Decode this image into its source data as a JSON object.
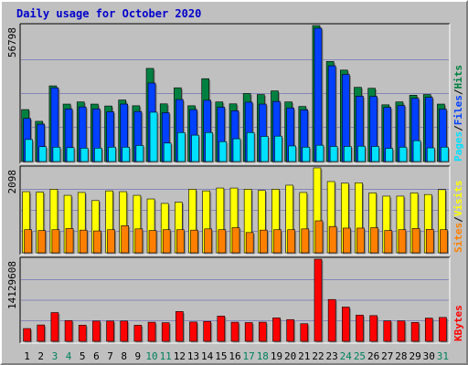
{
  "title": "Daily usage for October 2020",
  "colors": {
    "background": "#c0c0c0",
    "hits": "#008040",
    "files": "#0040ff",
    "pages": "#00e0ff",
    "visits": "#ffff00",
    "sites": "#ff8000",
    "kbytes": "#ff0000",
    "weekend_label": "#00805c",
    "weekday_label": "#000000",
    "gridline": "#0000aa"
  },
  "chart_data": [
    {
      "type": "bar",
      "name": "hits-files-pages",
      "ymax_label": "56798",
      "ymax": 56798,
      "legend": [
        {
          "text": "Pages",
          "color": "#00e0ff"
        },
        {
          "text": "/",
          "color": "#000000"
        },
        {
          "text": "Files",
          "color": "#0040ff"
        },
        {
          "text": "/",
          "color": "#000000"
        },
        {
          "text": "Hits",
          "color": "#008040"
        }
      ],
      "series": [
        {
          "name": "Hits",
          "color": "#008040",
          "values": [
            21700,
            16800,
            31600,
            24000,
            24900,
            24000,
            23200,
            25700,
            23300,
            38900,
            24100,
            30800,
            23300,
            34600,
            24900,
            24100,
            28400,
            28000,
            29500,
            24900,
            23000,
            56798,
            41800,
            38200,
            31000,
            30600,
            23700,
            24900,
            27700,
            28000,
            24000
          ]
        },
        {
          "name": "Files",
          "color": "#0040ff",
          "values": [
            18000,
            15600,
            30800,
            22000,
            22800,
            22000,
            20800,
            24000,
            20900,
            32800,
            20400,
            25900,
            21700,
            25600,
            22700,
            21200,
            24800,
            24000,
            25100,
            22400,
            21600,
            55700,
            40000,
            36400,
            27300,
            27200,
            22600,
            23400,
            26400,
            26800,
            21900
          ]
        },
        {
          "name": "Pages",
          "color": "#00e0ff",
          "values": [
            9200,
            6200,
            6000,
            5800,
            5600,
            5600,
            6000,
            6000,
            6700,
            20600,
            7700,
            12100,
            11000,
            12100,
            8300,
            9500,
            12100,
            10500,
            10600,
            6500,
            6000,
            6800,
            6300,
            6300,
            6400,
            6300,
            5500,
            6000,
            8700,
            5700,
            6000
          ]
        }
      ]
    },
    {
      "type": "bar",
      "name": "visits-sites",
      "ymax_label": "2098",
      "ymax": 2098,
      "legend": [
        {
          "text": "Sites",
          "color": "#ff8000"
        },
        {
          "text": "/",
          "color": "#000000"
        },
        {
          "text": "Visits",
          "color": "#ffff00"
        }
      ],
      "series": [
        {
          "name": "Visits",
          "color": "#ffff00",
          "values": [
            1510,
            1500,
            1570,
            1420,
            1490,
            1290,
            1530,
            1510,
            1420,
            1330,
            1220,
            1250,
            1570,
            1530,
            1600,
            1600,
            1570,
            1540,
            1570,
            1670,
            1490,
            2098,
            1760,
            1720,
            1730,
            1480,
            1400,
            1400,
            1480,
            1440,
            1560
          ]
        },
        {
          "name": "Sites",
          "color": "#ff8000",
          "values": [
            570,
            550,
            570,
            600,
            560,
            540,
            570,
            670,
            590,
            550,
            570,
            570,
            560,
            590,
            570,
            620,
            500,
            560,
            570,
            570,
            590,
            790,
            650,
            610,
            610,
            620,
            550,
            570,
            600,
            580,
            570
          ]
        }
      ]
    },
    {
      "type": "bar",
      "name": "kbytes",
      "ymax_label": "14129608",
      "ymax": 14129608,
      "legend": [
        {
          "text": "KBytes",
          "color": "#ff0000"
        }
      ],
      "series": [
        {
          "name": "KBytes",
          "color": "#ff0000",
          "values": [
            2190000,
            2810000,
            4940000,
            3570000,
            2770000,
            3490000,
            3490000,
            3490000,
            2760000,
            3280000,
            3200000,
            5120000,
            3320000,
            3420000,
            4330000,
            3280000,
            3220000,
            3290000,
            4030000,
            3730000,
            3020000,
            14129608,
            7190000,
            5890000,
            4510000,
            4420000,
            3510000,
            3510000,
            3240000,
            3990000,
            4100000
          ]
        }
      ]
    }
  ],
  "x_axis": {
    "days": [
      "1",
      "2",
      "3",
      "4",
      "5",
      "6",
      "7",
      "8",
      "9",
      "10",
      "11",
      "12",
      "13",
      "14",
      "15",
      "16",
      "17",
      "18",
      "19",
      "20",
      "21",
      "22",
      "23",
      "24",
      "25",
      "26",
      "27",
      "28",
      "29",
      "30",
      "31"
    ],
    "weekend": [
      false,
      false,
      true,
      true,
      false,
      false,
      false,
      false,
      false,
      true,
      true,
      false,
      false,
      false,
      false,
      false,
      true,
      true,
      false,
      false,
      false,
      false,
      false,
      true,
      true,
      false,
      false,
      false,
      false,
      false,
      true
    ]
  }
}
